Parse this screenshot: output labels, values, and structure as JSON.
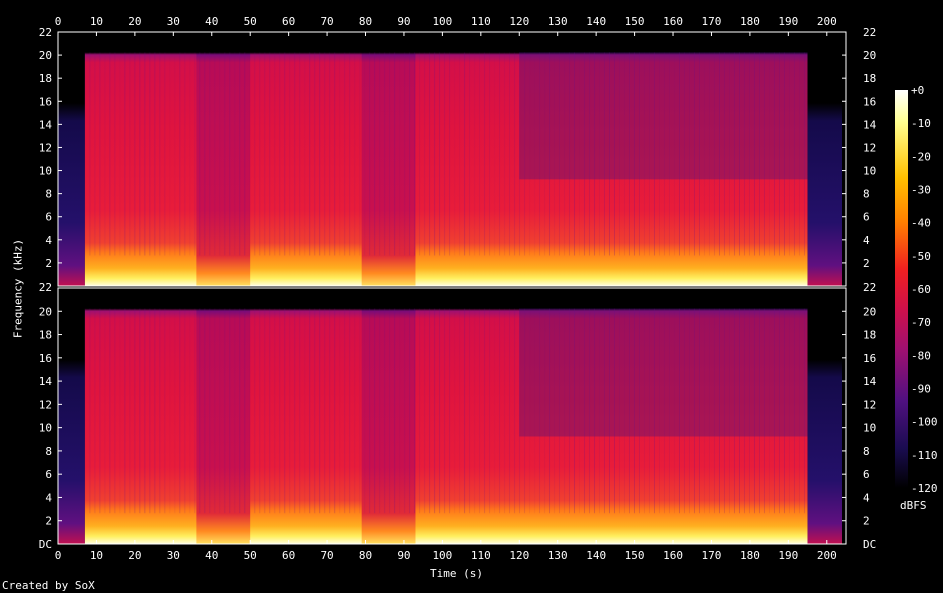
{
  "chart_data": {
    "type": "heatmap",
    "credit": "Created by SoX",
    "xlabel": "Time (s)",
    "ylabel": "Frequency (kHz)",
    "colorbar_label": "dBFS",
    "x_ticks": [
      "0",
      "10",
      "20",
      "30",
      "40",
      "50",
      "60",
      "70",
      "80",
      "90",
      "100",
      "110",
      "120",
      "130",
      "140",
      "150",
      "160",
      "170",
      "180",
      "190",
      "200"
    ],
    "xlim": [
      0,
      205
    ],
    "y_ticks": [
      "DC",
      "2",
      "4",
      "6",
      "8",
      "10",
      "12",
      "14",
      "16",
      "18",
      "20",
      "22"
    ],
    "ylim": [
      0,
      22
    ],
    "colorbar_ticks": [
      "+0",
      "-10",
      "-20",
      "-30",
      "-40",
      "-50",
      "-60",
      "-70",
      "-80",
      "-90",
      "-100",
      "-110",
      "-120"
    ],
    "zlim": [
      -120,
      0
    ],
    "channels": 2,
    "content_start_s": 7,
    "content_end_s": 195,
    "quiet_sections_s": [
      [
        36,
        50
      ],
      [
        79,
        93
      ]
    ],
    "bandwidth_khz": 20,
    "colors": {
      "background": "#000000",
      "hot": "#ffff80",
      "mid": "#e0203c",
      "cold": "#20105a"
    }
  }
}
